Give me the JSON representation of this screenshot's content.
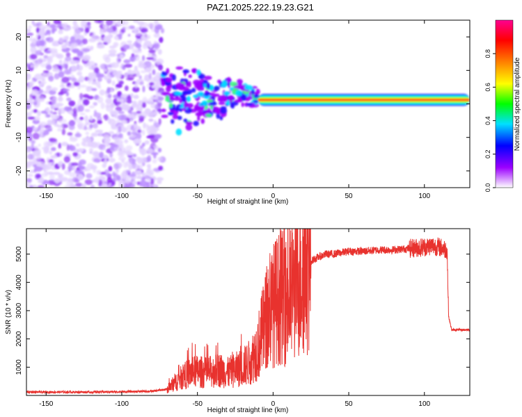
{
  "title": "PAZ1.2025.222.19.23.G21",
  "chart_data": [
    {
      "type": "heatmap",
      "title": "PAZ1.2025.222.19.23.G21",
      "xlabel": "Height of straight line (km)",
      "ylabel": "Frequency (Hz)",
      "xlim": [
        -163,
        130
      ],
      "ylim": [
        -25,
        25
      ],
      "xticks": [
        -150,
        -100,
        -50,
        0,
        50,
        100
      ],
      "yticks": [
        -20,
        -10,
        0,
        10,
        20
      ],
      "grid": false,
      "colorbar": {
        "label": "Normalized spectral amplitude",
        "range": [
          0,
          1
        ],
        "ticks": [
          "0.0",
          "0.2",
          "0.4",
          "0.6",
          "0.8"
        ],
        "colormap": [
          "#ffffff",
          "#9c00ff",
          "#0000ff",
          "#00e0ff",
          "#00ff00",
          "#ffff00",
          "#ff8000",
          "#ff0000",
          "#ff0090"
        ]
      },
      "regions": [
        {
          "x_range": [
            -163,
            -73
          ],
          "description": "scattered low amplitude noise",
          "amplitude": 0.15
        },
        {
          "x_range": [
            -73,
            -10
          ],
          "description": "fragmented signal near 0 Hz",
          "amplitude": 0.3
        },
        {
          "x_range": [
            -10,
            130
          ],
          "description": "continuous carrier line near 1 Hz",
          "amplitude": 0.9
        }
      ]
    },
    {
      "type": "line",
      "xlabel": "Height of straight line (km)",
      "ylabel": "SNR (10 * v/v)",
      "xlim": [
        -163,
        130
      ],
      "ylim": [
        0,
        5900
      ],
      "xticks": [
        -150,
        -100,
        -50,
        0,
        50,
        100
      ],
      "yticks": [
        1000,
        2000,
        3000,
        4000,
        5000
      ],
      "grid": false,
      "series": [
        {
          "color": "#e8322e",
          "x": [
            -163,
            -140,
            -120,
            -100,
            -80,
            -70,
            -65,
            -60,
            -55,
            -50,
            -45,
            -40,
            -35,
            -30,
            -25,
            -20,
            -15,
            -10,
            -5,
            0,
            5,
            10,
            15,
            20,
            25,
            30,
            35,
            40,
            50,
            60,
            70,
            80,
            90,
            100,
            105,
            110,
            115,
            116,
            118,
            120,
            125,
            130
          ],
          "values": [
            120,
            120,
            120,
            130,
            150,
            220,
            450,
            650,
            800,
            850,
            800,
            850,
            900,
            800,
            900,
            1000,
            1200,
            1700,
            2600,
            3200,
            3500,
            3300,
            3900,
            4500,
            4750,
            4900,
            5000,
            5000,
            5100,
            5100,
            5150,
            5150,
            5200,
            5250,
            5300,
            5250,
            5150,
            2800,
            2320,
            2320,
            2320,
            2320
          ]
        }
      ]
    }
  ]
}
